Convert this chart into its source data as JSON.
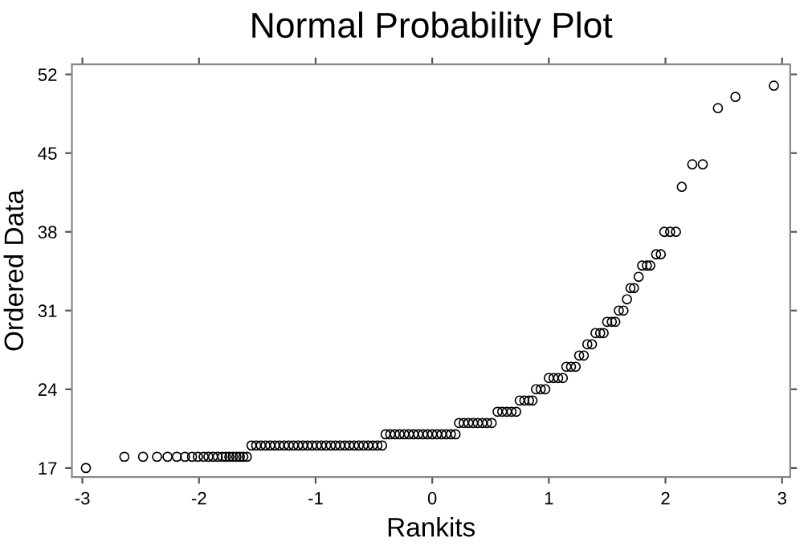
{
  "chart_data": {
    "type": "scatter",
    "title": "Normal Probability Plot",
    "xlabel": "Rankits",
    "ylabel": "Ordered Data",
    "x": [
      -2.97,
      -2.64,
      -2.48,
      -2.36,
      -2.27,
      -2.19,
      -2.12,
      -2.06,
      -2.01,
      -1.96,
      -1.92,
      -1.88,
      -1.84,
      -1.8,
      -1.77,
      -1.74,
      -1.71,
      -1.68,
      -1.65,
      -1.62,
      -1.59,
      -1.55,
      -1.51,
      -1.47,
      -1.43,
      -1.39,
      -1.35,
      -1.31,
      -1.27,
      -1.23,
      -1.19,
      -1.15,
      -1.11,
      -1.07,
      -1.03,
      -0.99,
      -0.95,
      -0.91,
      -0.87,
      -0.83,
      -0.79,
      -0.75,
      -0.71,
      -0.67,
      -0.63,
      -0.59,
      -0.55,
      -0.51,
      -0.47,
      -0.43,
      -0.4,
      -0.36,
      -0.32,
      -0.28,
      -0.24,
      -0.2,
      -0.16,
      -0.12,
      -0.08,
      -0.04,
      0.0,
      0.04,
      0.08,
      0.12,
      0.16,
      0.2,
      0.23,
      0.27,
      0.31,
      0.35,
      0.39,
      0.43,
      0.47,
      0.51,
      0.56,
      0.6,
      0.64,
      0.68,
      0.72,
      0.75,
      0.79,
      0.83,
      0.86,
      0.89,
      0.93,
      0.97,
      1.0,
      1.04,
      1.08,
      1.12,
      1.15,
      1.19,
      1.23,
      1.26,
      1.3,
      1.33,
      1.37,
      1.4,
      1.44,
      1.47,
      1.5,
      1.54,
      1.57,
      1.6,
      1.64,
      1.67,
      1.7,
      1.73,
      1.77,
      1.8,
      1.84,
      1.87,
      1.92,
      1.96,
      1.99,
      2.04,
      2.09,
      2.14,
      2.23,
      2.32,
      2.45,
      2.6,
      2.93
    ],
    "values": [
      17,
      18,
      18,
      18,
      18,
      18,
      18,
      18,
      18,
      18,
      18,
      18,
      18,
      18,
      18,
      18,
      18,
      18,
      18,
      18,
      18,
      19,
      19,
      19,
      19,
      19,
      19,
      19,
      19,
      19,
      19,
      19,
      19,
      19,
      19,
      19,
      19,
      19,
      19,
      19,
      19,
      19,
      19,
      19,
      19,
      19,
      19,
      19,
      19,
      19,
      20,
      20,
      20,
      20,
      20,
      20,
      20,
      20,
      20,
      20,
      20,
      20,
      20,
      20,
      20,
      20,
      21,
      21,
      21,
      21,
      21,
      21,
      21,
      21,
      22,
      22,
      22,
      22,
      22,
      23,
      23,
      23,
      23,
      24,
      24,
      24,
      25,
      25,
      25,
      25,
      26,
      26,
      26,
      27,
      27,
      28,
      28,
      29,
      29,
      29,
      30,
      30,
      30,
      31,
      31,
      32,
      33,
      33,
      34,
      35,
      35,
      35,
      36,
      36,
      38,
      38,
      38,
      42,
      44,
      44,
      49,
      50,
      51
    ],
    "color": "#000000",
    "marker": "circle",
    "xlim": [
      -3.09,
      3.07
    ],
    "xticks": [
      -3,
      -2,
      -1,
      0,
      1,
      2,
      3
    ],
    "ylim": [
      16.2,
      52.9
    ],
    "yticks": [
      17,
      24,
      31,
      38,
      45,
      52
    ],
    "grid": false
  }
}
